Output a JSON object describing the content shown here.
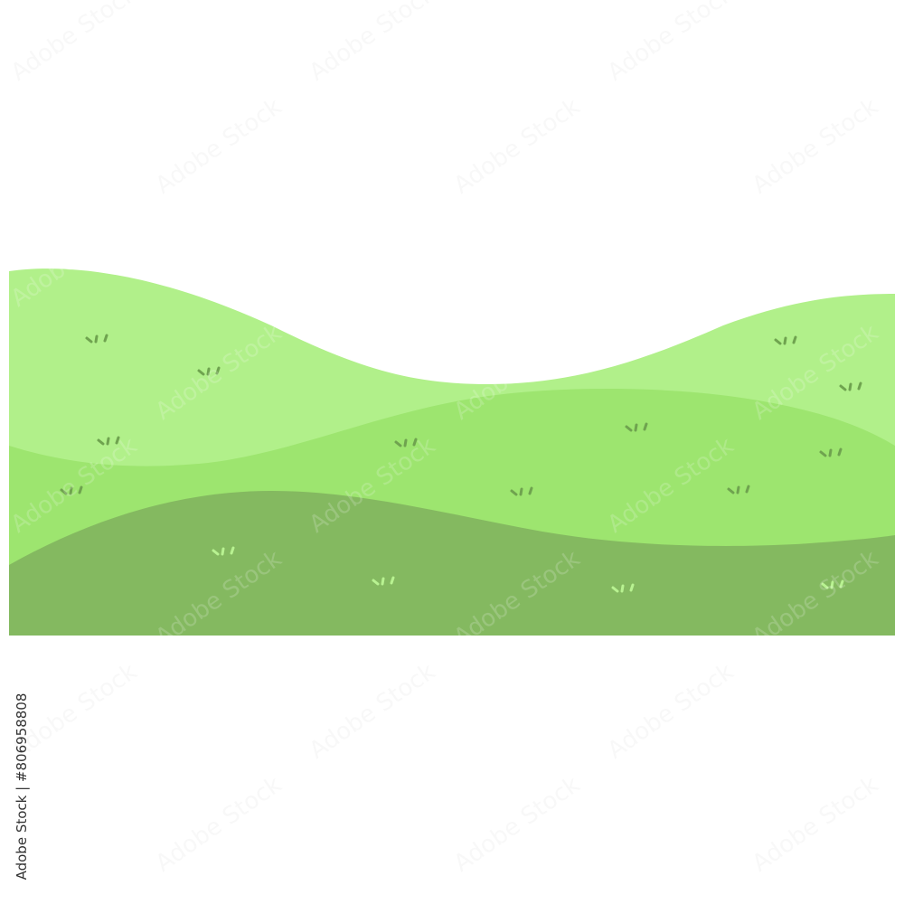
{
  "illustration": {
    "subject": "layered green hills landscape",
    "colors": {
      "back_hill": "#b1f08a",
      "middle_hill": "#9de56f",
      "front_hill": "#84b960",
      "grass_tuft_dark": "#6fa34f",
      "grass_tuft_light": "#b8f291",
      "background": "#ffffff"
    }
  },
  "watermark": {
    "text": "Adobe Stock"
  },
  "side_label": {
    "text": "Adobe Stock | #806958808"
  }
}
